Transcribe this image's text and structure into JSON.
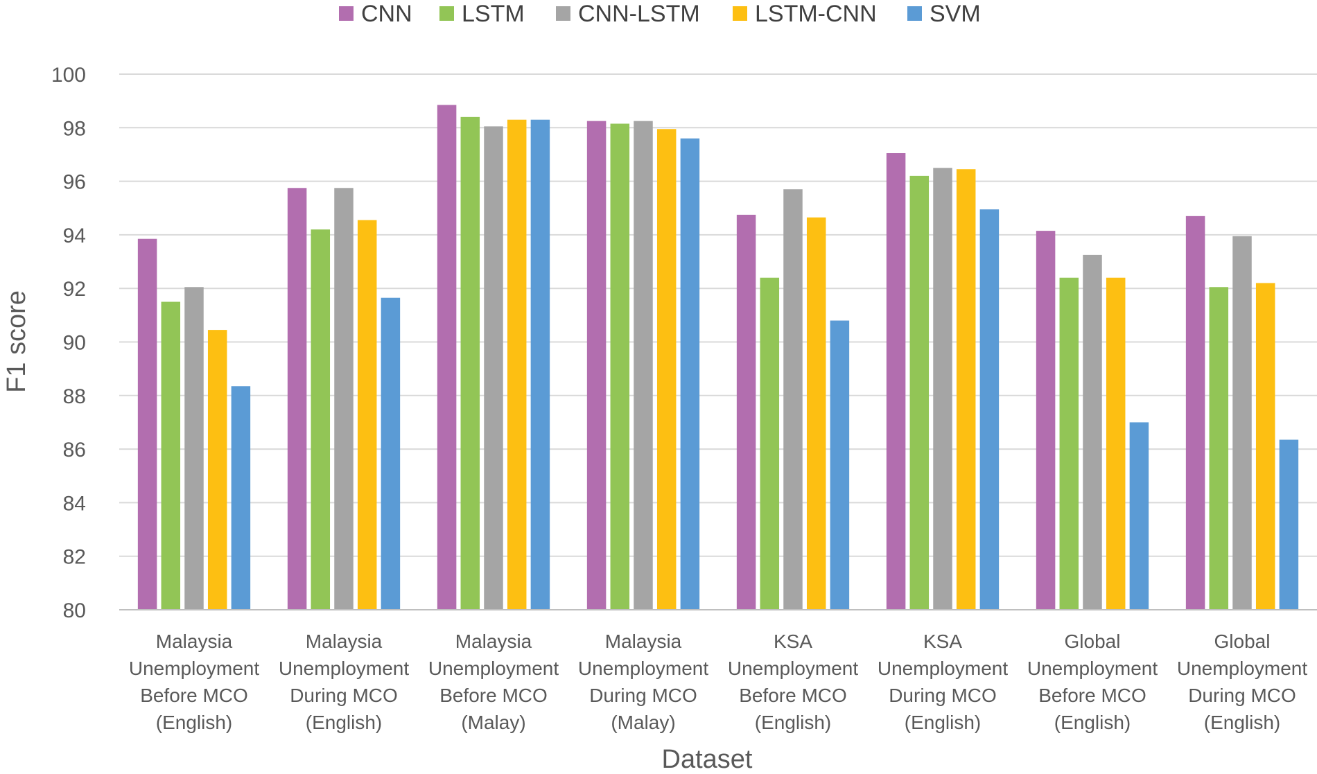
{
  "chart_data": {
    "type": "bar",
    "title": "",
    "xlabel": "Dataset",
    "ylabel": "F1 score",
    "ylim": [
      80,
      100
    ],
    "yticks": [
      80,
      82,
      84,
      86,
      88,
      90,
      92,
      94,
      96,
      98,
      100
    ],
    "grid": "horizontal",
    "legend_position": "top",
    "categories": [
      [
        "Malaysia",
        "Unemployment",
        "Before MCO",
        "(English)"
      ],
      [
        "Malaysia",
        "Unemployment",
        "During MCO",
        "(English)"
      ],
      [
        "Malaysia",
        "Unemployment",
        "Before MCO",
        "(Malay)"
      ],
      [
        "Malaysia",
        "Unemployment",
        "During MCO",
        "(Malay)"
      ],
      [
        "KSA",
        "Unemployment",
        "Before MCO",
        "(English)"
      ],
      [
        "KSA",
        "Unemployment",
        "During MCO",
        "(English)"
      ],
      [
        "Global",
        "Unemployment",
        "Before MCO",
        "(English)"
      ],
      [
        "Global",
        "Unemployment",
        "During MCO",
        "(English)"
      ]
    ],
    "series": [
      {
        "name": "CNN",
        "color": "#B26EAF",
        "values": [
          93.85,
          95.75,
          98.85,
          98.25,
          94.75,
          97.05,
          94.15,
          94.7
        ]
      },
      {
        "name": "LSTM",
        "color": "#92C556",
        "values": [
          91.5,
          94.2,
          98.4,
          98.15,
          92.4,
          96.2,
          92.4,
          92.05
        ]
      },
      {
        "name": "CNN-LSTM",
        "color": "#A5A5A5",
        "values": [
          92.05,
          95.75,
          98.05,
          98.25,
          95.7,
          96.5,
          93.25,
          93.95
        ]
      },
      {
        "name": "LSTM-CNN",
        "color": "#FDBF12",
        "values": [
          90.45,
          94.55,
          98.3,
          97.95,
          94.65,
          96.45,
          92.4,
          92.2
        ]
      },
      {
        "name": "SVM",
        "color": "#5B9BD5",
        "values": [
          88.35,
          91.65,
          98.3,
          97.6,
          90.8,
          94.95,
          87.0,
          86.35
        ]
      }
    ]
  }
}
